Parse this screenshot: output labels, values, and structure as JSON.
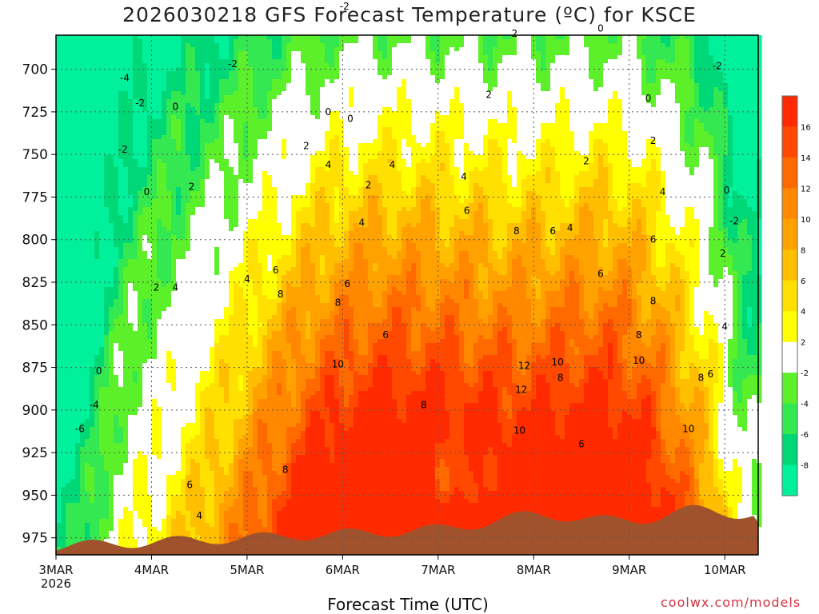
{
  "chart_data": {
    "type": "heatmap",
    "title": "2026030218 GFS Forecast Temperature (ºC) for KSCE",
    "xlabel": "Forecast Time (UTC)",
    "ylabel": "",
    "credit": "coolwx.com/models",
    "x_ticks": [
      "3MAR\n2026",
      "4MAR",
      "5MAR",
      "6MAR",
      "7MAR",
      "8MAR",
      "9MAR",
      "10MAR"
    ],
    "x_tick_lines": [
      [
        "3MAR",
        "2026"
      ],
      [
        "4MAR"
      ],
      [
        "5MAR"
      ],
      [
        "6MAR"
      ],
      [
        "7MAR"
      ],
      [
        "8MAR"
      ],
      [
        "9MAR"
      ],
      [
        "10MAR"
      ]
    ],
    "y_ticks": [
      700,
      725,
      750,
      775,
      800,
      825,
      850,
      875,
      900,
      925,
      950,
      975
    ],
    "y_range": [
      680,
      985
    ],
    "x_range_days": [
      3.0,
      10.35
    ],
    "colorbar": {
      "levels": [
        16,
        14,
        12,
        10,
        8,
        6,
        4,
        2,
        -2,
        -4,
        -6,
        -8
      ],
      "bands": [
        {
          "range": [
            -10,
            -8
          ],
          "color": "#00f09c"
        },
        {
          "range": [
            -8,
            -6
          ],
          "color": "#00d878"
        },
        {
          "range": [
            -6,
            -4
          ],
          "color": "#33e850"
        },
        {
          "range": [
            -4,
            -2
          ],
          "color": "#5cf02a"
        },
        {
          "range": [
            -2,
            2
          ],
          "color": "#ffffff"
        },
        {
          "range": [
            2,
            4
          ],
          "color": "#ffff00"
        },
        {
          "range": [
            4,
            6
          ],
          "color": "#ffe000"
        },
        {
          "range": [
            6,
            8
          ],
          "color": "#ffbf00"
        },
        {
          "range": [
            8,
            10
          ],
          "color": "#ffa200"
        },
        {
          "range": [
            10,
            12
          ],
          "color": "#ff8800"
        },
        {
          "range": [
            12,
            14
          ],
          "color": "#ff6a00"
        },
        {
          "range": [
            14,
            16
          ],
          "color": "#ff4800"
        },
        {
          "range": [
            16,
            18
          ],
          "color": "#ff2a00"
        }
      ]
    },
    "terrain_color": "#a0522d",
    "contour_labels": [
      {
        "t": 3.72,
        "p": 705,
        "v": "-4"
      },
      {
        "t": 3.88,
        "p": 720,
        "v": "-2"
      },
      {
        "t": 3.7,
        "p": 747,
        "v": "-2"
      },
      {
        "t": 4.25,
        "p": 722,
        "v": "0"
      },
      {
        "t": 3.95,
        "p": 772,
        "v": "0"
      },
      {
        "t": 4.42,
        "p": 769,
        "v": "2"
      },
      {
        "t": 4.85,
        "p": 697,
        "v": "-2"
      },
      {
        "t": 6.02,
        "p": 663,
        "v": "-2"
      },
      {
        "t": 5.85,
        "p": 725,
        "v": "0"
      },
      {
        "t": 6.08,
        "p": 729,
        "v": "0"
      },
      {
        "t": 5.62,
        "p": 745,
        "v": "2"
      },
      {
        "t": 5.85,
        "p": 756,
        "v": "4"
      },
      {
        "t": 6.27,
        "p": 768,
        "v": "2"
      },
      {
        "t": 6.52,
        "p": 756,
        "v": "4"
      },
      {
        "t": 6.2,
        "p": 790,
        "v": "4"
      },
      {
        "t": 7.8,
        "p": 679,
        "v": "2"
      },
      {
        "t": 7.53,
        "p": 715,
        "v": "2"
      },
      {
        "t": 7.27,
        "p": 763,
        "v": "4"
      },
      {
        "t": 7.3,
        "p": 783,
        "v": "6"
      },
      {
        "t": 8.55,
        "p": 754,
        "v": "2"
      },
      {
        "t": 8.2,
        "p": 795,
        "v": "6"
      },
      {
        "t": 8.38,
        "p": 793,
        "v": "4"
      },
      {
        "t": 8.7,
        "p": 676,
        "v": "0"
      },
      {
        "t": 9.2,
        "p": 717,
        "v": "0"
      },
      {
        "t": 9.25,
        "p": 742,
        "v": "2"
      },
      {
        "t": 9.92,
        "p": 698,
        "v": "-2"
      },
      {
        "t": 10.02,
        "p": 771,
        "v": "0"
      },
      {
        "t": 10.1,
        "p": 789,
        "v": "-2"
      },
      {
        "t": 9.35,
        "p": 772,
        "v": "4"
      },
      {
        "t": 9.25,
        "p": 800,
        "v": "6"
      },
      {
        "t": 9.98,
        "p": 808,
        "v": "2"
      },
      {
        "t": 7.82,
        "p": 795,
        "v": "8"
      },
      {
        "t": 4.05,
        "p": 828,
        "v": "2"
      },
      {
        "t": 4.25,
        "p": 828,
        "v": "4"
      },
      {
        "t": 5.0,
        "p": 823,
        "v": "4"
      },
      {
        "t": 5.3,
        "p": 818,
        "v": "6"
      },
      {
        "t": 5.35,
        "p": 832,
        "v": "8"
      },
      {
        "t": 5.95,
        "p": 837,
        "v": "8"
      },
      {
        "t": 6.05,
        "p": 826,
        "v": "6"
      },
      {
        "t": 6.45,
        "p": 856,
        "v": "6"
      },
      {
        "t": 8.7,
        "p": 820,
        "v": "6"
      },
      {
        "t": 9.25,
        "p": 836,
        "v": "8"
      },
      {
        "t": 9.1,
        "p": 856,
        "v": "8"
      },
      {
        "t": 9.1,
        "p": 871,
        "v": "10"
      },
      {
        "t": 10.0,
        "p": 851,
        "v": "4"
      },
      {
        "t": 3.45,
        "p": 877,
        "v": "0"
      },
      {
        "t": 5.95,
        "p": 873,
        "v": "10"
      },
      {
        "t": 6.85,
        "p": 897,
        "v": "8"
      },
      {
        "t": 7.9,
        "p": 874,
        "v": "12"
      },
      {
        "t": 8.25,
        "p": 872,
        "v": "10"
      },
      {
        "t": 8.28,
        "p": 881,
        "v": "8"
      },
      {
        "t": 7.87,
        "p": 888,
        "v": "12"
      },
      {
        "t": 9.75,
        "p": 881,
        "v": "8"
      },
      {
        "t": 9.85,
        "p": 879,
        "v": "6"
      },
      {
        "t": 3.4,
        "p": 897,
        "v": "-4"
      },
      {
        "t": 3.25,
        "p": 911,
        "v": "-6"
      },
      {
        "t": 7.85,
        "p": 912,
        "v": "10"
      },
      {
        "t": 8.5,
        "p": 920,
        "v": "6"
      },
      {
        "t": 9.62,
        "p": 911,
        "v": "10"
      },
      {
        "t": 5.4,
        "p": 935,
        "v": "8"
      },
      {
        "t": 4.4,
        "p": 944,
        "v": "6"
      },
      {
        "t": 4.5,
        "p": 962,
        "v": "4"
      }
    ]
  }
}
